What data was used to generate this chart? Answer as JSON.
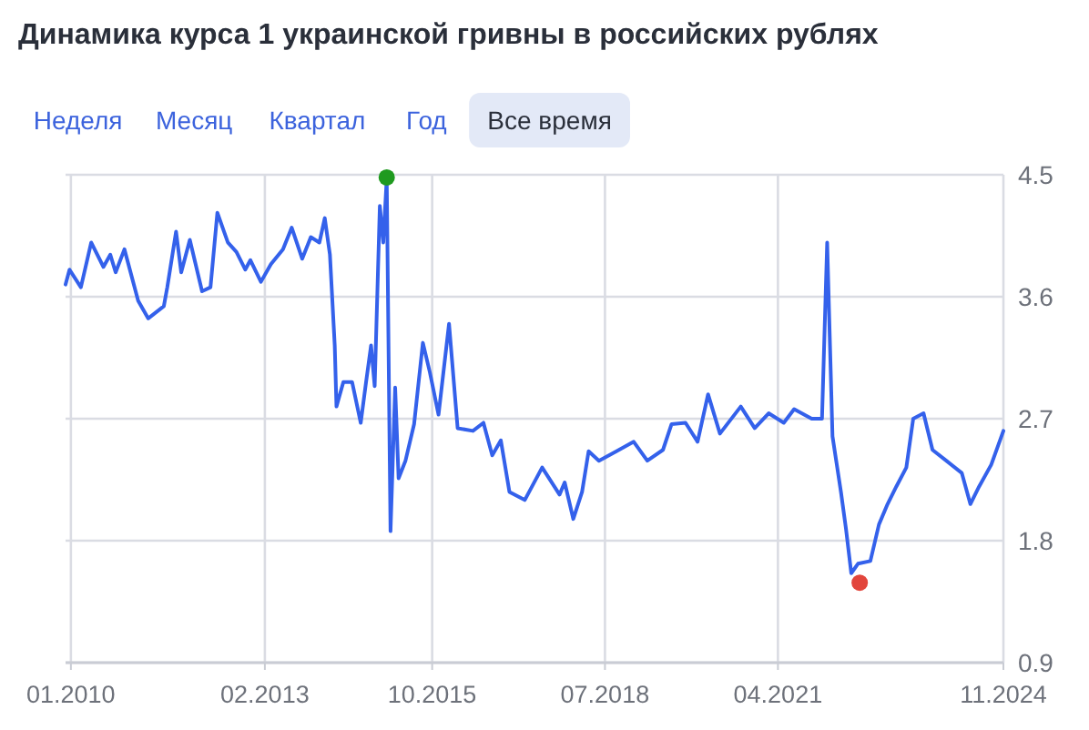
{
  "chart_data": {
    "type": "line",
    "title": "Динамика курса 1 украинской гривны в российских рублях",
    "annotations": [
      "Неделя",
      "Месяц",
      "Квартал",
      "Год",
      "Все время"
    ],
    "xlim": [
      "2009-12-01",
      "2024-11-01"
    ],
    "xticks": [
      {
        "value": "2010-01-01",
        "label": "01.2010"
      },
      {
        "value": "2013-02-01",
        "label": "02.2013"
      },
      {
        "value": "2015-10-01",
        "label": "10.2015"
      },
      {
        "value": "2018-07-01",
        "label": "07.2018"
      },
      {
        "value": "2021-04-01",
        "label": "04.2021"
      },
      {
        "value": "2024-11-01",
        "label": "11.2024"
      }
    ],
    "ylim": [
      0.9,
      4.5
    ],
    "yticks": [
      0.9,
      1.8,
      2.7,
      3.6,
      4.5
    ],
    "grid": true,
    "series": [
      {
        "color": "#3461eb",
        "marker": "none",
        "line_style": "solid",
        "x": [
          "2009-12-01",
          "2009-12-24",
          "2010-02-28",
          "2010-04-29",
          "2010-07-09",
          "2010-08-18",
          "2010-09-18",
          "2010-11-08",
          "2011-01-27",
          "2011-03-26",
          "2011-06-25",
          "2011-07-15",
          "2011-09-04",
          "2011-10-04",
          "2011-11-23",
          "2012-02-02",
          "2012-03-22",
          "2012-05-01",
          "2012-07-01",
          "2012-08-20",
          "2012-10-10",
          "2012-11-09",
          "2013-01-09",
          "2013-03-08",
          "2013-05-17",
          "2013-07-07",
          "2013-09-06",
          "2013-10-26",
          "2013-12-15",
          "2014-01-15",
          "2014-02-14",
          "2014-03-14",
          "2014-03-24",
          "2014-05-03",
          "2014-06-23",
          "2014-08-12",
          "2014-09-12",
          "2014-10-11",
          "2014-11-01",
          "2014-12-01",
          "2014-12-21",
          "2015-01-10",
          "2015-02-01",
          "2015-02-28",
          "2015-03-20",
          "2015-04-29",
          "2015-06-18",
          "2015-08-08",
          "2015-09-18",
          "2015-11-07",
          "2016-01-07",
          "2016-02-26",
          "2016-05-25",
          "2016-07-25",
          "2016-09-14",
          "2016-11-03",
          "2016-12-23",
          "2017-03-22",
          "2017-07-01",
          "2017-10-10",
          "2017-11-09",
          "2017-12-29",
          "2018-02-18",
          "2018-03-28",
          "2018-05-27",
          "2018-09-06",
          "2018-12-15",
          "2019-03-04",
          "2019-06-03",
          "2019-07-23",
          "2019-10-12",
          "2019-12-21",
          "2020-02-20",
          "2020-04-29",
          "2020-08-28",
          "2020-11-17",
          "2021-02-06",
          "2021-05-05",
          "2021-07-04",
          "2021-10-14",
          "2021-12-13",
          "2022-01-12",
          "2022-02-12",
          "2022-04-02",
          "2022-05-01",
          "2022-06-01",
          "2022-07-10",
          "2022-09-20",
          "2022-11-09",
          "2022-12-29",
          "2023-02-18",
          "2023-04-17",
          "2023-05-27",
          "2023-07-26",
          "2023-09-16",
          "2023-11-25",
          "2024-03-04",
          "2024-04-23",
          "2024-06-13",
          "2024-08-22",
          "2024-11-01"
        ],
        "values": [
          3.69,
          3.8,
          3.67,
          4.0,
          3.82,
          3.91,
          3.78,
          3.95,
          3.57,
          3.44,
          3.53,
          3.67,
          4.08,
          3.78,
          4.02,
          3.64,
          3.67,
          4.22,
          4.0,
          3.93,
          3.8,
          3.87,
          3.71,
          3.84,
          3.95,
          4.11,
          3.88,
          4.04,
          4.0,
          4.18,
          3.91,
          3.24,
          2.79,
          2.97,
          2.97,
          2.67,
          2.97,
          3.24,
          2.94,
          4.27,
          4.0,
          4.47,
          1.87,
          2.93,
          2.26,
          2.39,
          2.66,
          3.26,
          3.04,
          2.73,
          3.4,
          2.63,
          2.61,
          2.67,
          2.43,
          2.54,
          2.16,
          2.1,
          2.34,
          2.14,
          2.23,
          1.96,
          2.16,
          2.46,
          2.39,
          2.46,
          2.53,
          2.39,
          2.47,
          2.66,
          2.67,
          2.53,
          2.88,
          2.59,
          2.79,
          2.63,
          2.74,
          2.67,
          2.77,
          2.7,
          2.7,
          4.0,
          2.57,
          2.16,
          1.89,
          1.56,
          1.63,
          1.65,
          1.92,
          2.07,
          2.2,
          2.34,
          2.7,
          2.74,
          2.47,
          2.4,
          2.3,
          2.07,
          2.2,
          2.36,
          2.61
        ]
      },
      {
        "type": "scatter",
        "color": "#1f9a1f",
        "marker": "circle",
        "x": [
          "2015-01-10"
        ],
        "values": [
          4.48
        ]
      },
      {
        "type": "scatter",
        "color": "#e2453c",
        "marker": "circle",
        "x": [
          "2022-07-20"
        ],
        "values": [
          1.49
        ]
      }
    ]
  }
}
